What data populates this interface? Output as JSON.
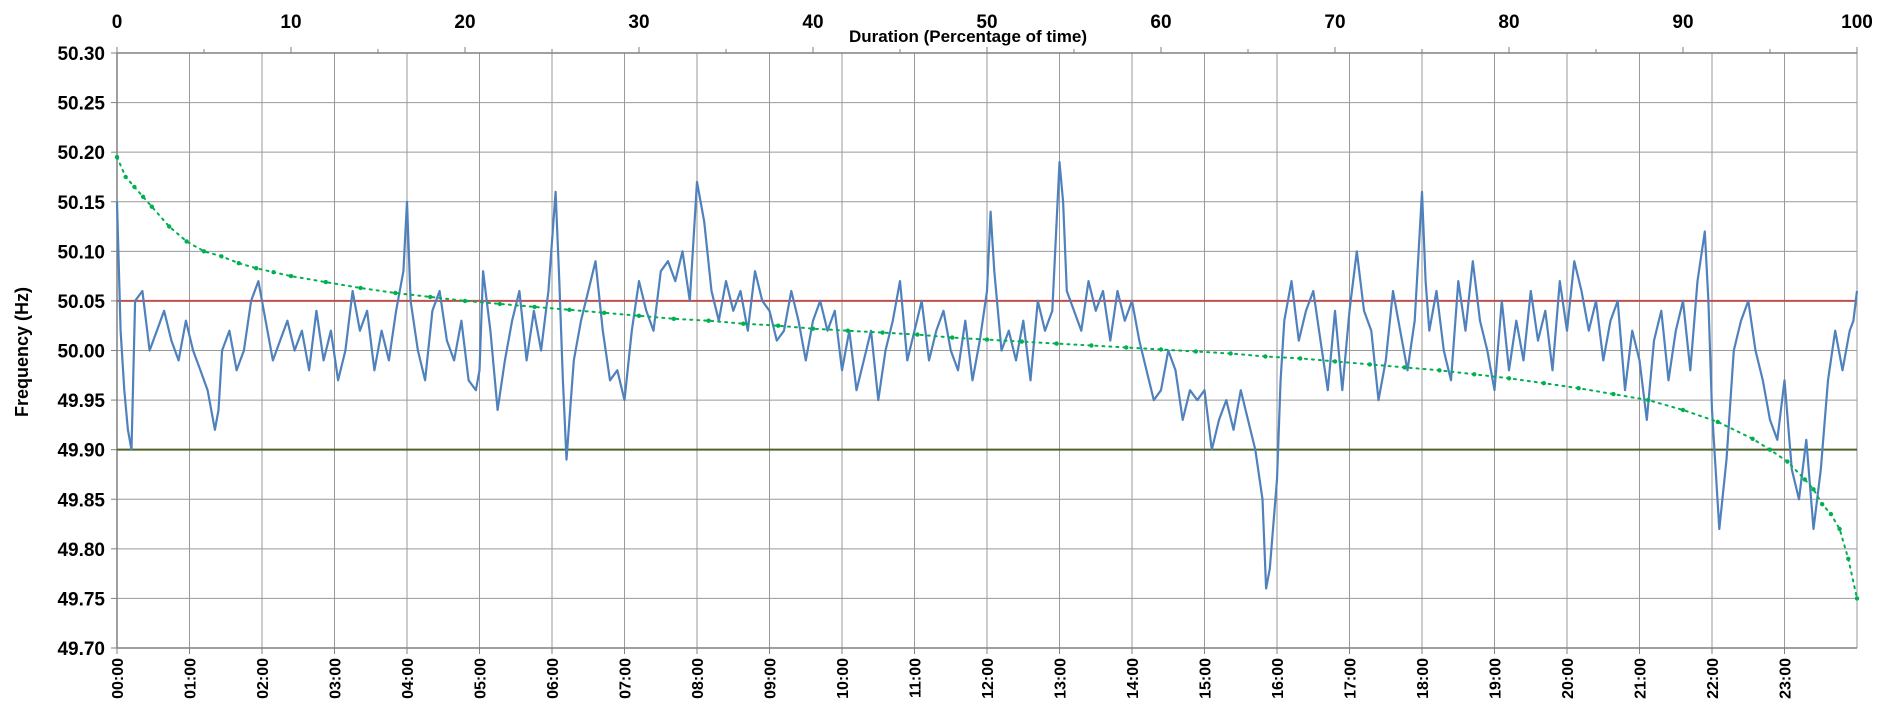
{
  "chart_data": {
    "type": "line",
    "x2label": "Duration (Percentage of time)",
    "ylabel": "Frequency (Hz)",
    "ylim": [
      49.7,
      50.3
    ],
    "y_ticks": [
      "50.30",
      "50.25",
      "50.20",
      "50.15",
      "50.10",
      "50.05",
      "50.00",
      "49.95",
      "49.90",
      "49.85",
      "49.80",
      "49.75",
      "49.70"
    ],
    "x2lim": [
      0,
      100
    ],
    "x2_ticks": [
      "0",
      "10",
      "20",
      "30",
      "40",
      "50",
      "60",
      "70",
      "80",
      "90",
      "100"
    ],
    "xlim_hours": [
      0,
      24
    ],
    "x_ticks": [
      "00:00",
      "01:00",
      "02:00",
      "03:00",
      "04:00",
      "05:00",
      "06:00",
      "07:00",
      "08:00",
      "09:00",
      "10:00",
      "11:00",
      "12:00",
      "13:00",
      "14:00",
      "15:00",
      "16:00",
      "17:00",
      "18:00",
      "19:00",
      "20:00",
      "21:00",
      "22:00",
      "23:00"
    ],
    "grid": true,
    "series": [
      {
        "color": "#4f81bd",
        "axis": "time-hours",
        "x": [
          0.0,
          0.05,
          0.1,
          0.15,
          0.2,
          0.25,
          0.35,
          0.45,
          0.55,
          0.65,
          0.75,
          0.85,
          0.95,
          1.05,
          1.15,
          1.25,
          1.35,
          1.4,
          1.45,
          1.55,
          1.65,
          1.75,
          1.85,
          1.95,
          2.05,
          2.15,
          2.25,
          2.35,
          2.45,
          2.55,
          2.65,
          2.75,
          2.85,
          2.95,
          3.05,
          3.15,
          3.25,
          3.35,
          3.45,
          3.55,
          3.65,
          3.75,
          3.85,
          3.95,
          4.0,
          4.05,
          4.15,
          4.25,
          4.35,
          4.45,
          4.55,
          4.65,
          4.75,
          4.85,
          4.95,
          5.0,
          5.05,
          5.15,
          5.25,
          5.35,
          5.45,
          5.55,
          5.65,
          5.75,
          5.85,
          5.95,
          6.05,
          6.1,
          6.15,
          6.2,
          6.3,
          6.4,
          6.5,
          6.6,
          6.7,
          6.8,
          6.9,
          7.0,
          7.1,
          7.2,
          7.3,
          7.4,
          7.5,
          7.6,
          7.7,
          7.8,
          7.9,
          8.0,
          8.1,
          8.2,
          8.3,
          8.4,
          8.5,
          8.6,
          8.7,
          8.8,
          8.9,
          9.0,
          9.1,
          9.2,
          9.3,
          9.4,
          9.5,
          9.6,
          9.7,
          9.8,
          9.9,
          10.0,
          10.1,
          10.2,
          10.3,
          10.4,
          10.5,
          10.6,
          10.7,
          10.8,
          10.9,
          11.0,
          11.1,
          11.2,
          11.3,
          11.4,
          11.5,
          11.6,
          11.7,
          11.8,
          11.9,
          12.0,
          12.05,
          12.1,
          12.2,
          12.3,
          12.4,
          12.5,
          12.6,
          12.7,
          12.8,
          12.9,
          13.0,
          13.05,
          13.1,
          13.2,
          13.3,
          13.4,
          13.5,
          13.6,
          13.7,
          13.8,
          13.9,
          14.0,
          14.1,
          14.2,
          14.3,
          14.4,
          14.5,
          14.6,
          14.7,
          14.8,
          14.9,
          15.0,
          15.1,
          15.2,
          15.3,
          15.4,
          15.5,
          15.6,
          15.7,
          15.8,
          15.85,
          15.9,
          16.0,
          16.05,
          16.1,
          16.2,
          16.3,
          16.4,
          16.5,
          16.6,
          16.7,
          16.8,
          16.9,
          17.0,
          17.1,
          17.2,
          17.3,
          17.4,
          17.5,
          17.6,
          17.7,
          17.8,
          17.9,
          18.0,
          18.05,
          18.1,
          18.2,
          18.3,
          18.4,
          18.5,
          18.6,
          18.7,
          18.8,
          18.9,
          19.0,
          19.1,
          19.2,
          19.3,
          19.4,
          19.5,
          19.6,
          19.7,
          19.8,
          19.9,
          20.0,
          20.1,
          20.2,
          20.3,
          20.4,
          20.5,
          20.6,
          20.7,
          20.8,
          20.9,
          21.0,
          21.1,
          21.2,
          21.3,
          21.4,
          21.5,
          21.6,
          21.7,
          21.8,
          21.9,
          21.95,
          22.0,
          22.1,
          22.2,
          22.3,
          22.4,
          22.5,
          22.6,
          22.7,
          22.8,
          22.9,
          23.0,
          23.1,
          23.2,
          23.3,
          23.4,
          23.5,
          23.6,
          23.7,
          23.8,
          23.9,
          23.95,
          24.0
        ],
        "y": [
          50.15,
          50.02,
          49.96,
          49.92,
          49.9,
          50.05,
          50.06,
          50.0,
          50.02,
          50.04,
          50.01,
          49.99,
          50.03,
          50.0,
          49.98,
          49.96,
          49.92,
          49.94,
          50.0,
          50.02,
          49.98,
          50.0,
          50.05,
          50.07,
          50.03,
          49.99,
          50.01,
          50.03,
          50.0,
          50.02,
          49.98,
          50.04,
          49.99,
          50.02,
          49.97,
          50.0,
          50.06,
          50.02,
          50.04,
          49.98,
          50.02,
          49.99,
          50.04,
          50.08,
          50.15,
          50.05,
          50.0,
          49.97,
          50.04,
          50.06,
          50.01,
          49.99,
          50.03,
          49.97,
          49.96,
          49.98,
          50.08,
          50.02,
          49.94,
          49.99,
          50.03,
          50.06,
          49.99,
          50.04,
          50.0,
          50.06,
          50.16,
          50.07,
          49.97,
          49.89,
          49.99,
          50.03,
          50.06,
          50.09,
          50.02,
          49.97,
          49.98,
          49.95,
          50.02,
          50.07,
          50.04,
          50.02,
          50.08,
          50.09,
          50.07,
          50.1,
          50.05,
          50.17,
          50.13,
          50.06,
          50.03,
          50.07,
          50.04,
          50.06,
          50.02,
          50.08,
          50.05,
          50.04,
          50.01,
          50.02,
          50.06,
          50.03,
          49.99,
          50.03,
          50.05,
          50.02,
          50.04,
          49.98,
          50.02,
          49.96,
          49.99,
          50.02,
          49.95,
          50.0,
          50.03,
          50.07,
          49.99,
          50.02,
          50.05,
          49.99,
          50.02,
          50.04,
          50.0,
          49.98,
          50.03,
          49.97,
          50.01,
          50.06,
          50.14,
          50.08,
          50.0,
          50.02,
          49.99,
          50.03,
          49.97,
          50.05,
          50.02,
          50.04,
          50.19,
          50.15,
          50.06,
          50.04,
          50.02,
          50.07,
          50.04,
          50.06,
          50.01,
          50.06,
          50.03,
          50.05,
          50.01,
          49.98,
          49.95,
          49.96,
          50.0,
          49.98,
          49.93,
          49.96,
          49.95,
          49.96,
          49.9,
          49.93,
          49.95,
          49.92,
          49.96,
          49.93,
          49.9,
          49.85,
          49.76,
          49.78,
          49.87,
          49.97,
          50.03,
          50.07,
          50.01,
          50.04,
          50.06,
          50.01,
          49.96,
          50.04,
          49.96,
          50.04,
          50.1,
          50.04,
          50.02,
          49.95,
          49.99,
          50.06,
          50.02,
          49.98,
          50.03,
          50.16,
          50.07,
          50.02,
          50.06,
          50.0,
          49.97,
          50.07,
          50.02,
          50.09,
          50.03,
          50.0,
          49.96,
          50.05,
          49.98,
          50.03,
          49.99,
          50.06,
          50.01,
          50.04,
          49.98,
          50.07,
          50.02,
          50.09,
          50.06,
          50.02,
          50.05,
          49.99,
          50.03,
          50.05,
          49.96,
          50.02,
          49.99,
          49.93,
          50.01,
          50.04,
          49.97,
          50.02,
          50.05,
          49.98,
          50.07,
          50.12,
          50.05,
          49.94,
          49.82,
          49.89,
          50.0,
          50.03,
          50.05,
          50.0,
          49.97,
          49.93,
          49.91,
          49.97,
          49.88,
          49.85,
          49.91,
          49.82,
          49.88,
          49.97,
          50.02,
          49.98,
          50.02,
          50.03,
          50.06
        ]
      },
      {
        "color": "#00b050",
        "axis": "duration-percent",
        "x": [
          0,
          0.5,
          1,
          1.5,
          2,
          3,
          4,
          5,
          6,
          7,
          8,
          9,
          10,
          12,
          14,
          16,
          18,
          20,
          22,
          24,
          26,
          28,
          30,
          32,
          34,
          36,
          38,
          40,
          42,
          44,
          46,
          48,
          50,
          52,
          54,
          56,
          58,
          60,
          62,
          64,
          66,
          68,
          70,
          72,
          74,
          76,
          78,
          80,
          82,
          84,
          86,
          88,
          90,
          92,
          94,
          95,
          96,
          97,
          97.5,
          98,
          98.5,
          99,
          99.5,
          100
        ],
        "y": [
          50.195,
          50.175,
          50.165,
          50.155,
          50.145,
          50.125,
          50.11,
          50.1,
          50.095,
          50.088,
          50.083,
          50.079,
          50.075,
          50.069,
          50.063,
          50.058,
          50.054,
          50.05,
          50.047,
          50.044,
          50.041,
          50.038,
          50.035,
          50.032,
          50.03,
          50.027,
          50.025,
          50.022,
          50.02,
          50.018,
          50.016,
          50.013,
          50.011,
          50.009,
          50.007,
          50.005,
          50.003,
          50.001,
          49.999,
          49.997,
          49.994,
          49.992,
          49.989,
          49.986,
          49.983,
          49.98,
          49.976,
          49.972,
          49.967,
          49.962,
          49.956,
          49.95,
          49.94,
          49.928,
          49.911,
          49.9,
          49.888,
          49.87,
          49.86,
          49.845,
          49.835,
          49.82,
          49.79,
          49.75
        ]
      }
    ],
    "reference_lines": [
      {
        "y": 50.05,
        "color": "#c0504d"
      },
      {
        "y": 49.9,
        "color": "#4f6228"
      }
    ]
  }
}
